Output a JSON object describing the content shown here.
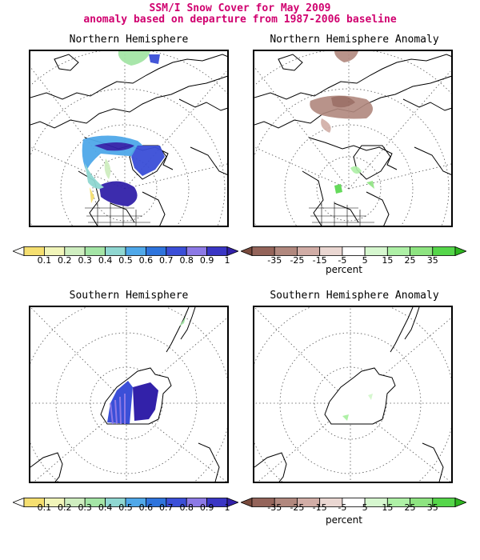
{
  "header": {
    "title_line1": "SSM/I Snow Cover for May 2009",
    "title_line2": "anomaly based on departure from 1987-2006 baseline"
  },
  "panels": {
    "nh": {
      "title": "Northern Hemisphere"
    },
    "nh_anom": {
      "title": "Northern Hemisphere Anomaly"
    },
    "sh": {
      "title": "Southern Hemisphere"
    },
    "sh_anom": {
      "title": "Southern Hemisphere Anomaly"
    }
  },
  "colorbars": {
    "cover": {
      "ticks": [
        "0.1",
        "0.2",
        "0.3",
        "0.4",
        "0.5",
        "0.6",
        "0.7",
        "0.8",
        "0.9",
        "1"
      ],
      "colors": [
        "#fbfbf9",
        "#f5df70",
        "#f1f5b9",
        "#cfeec0",
        "#a4e5a6",
        "#8fd7d1",
        "#4fa8e9",
        "#2e74dd",
        "#3b4fd8",
        "#8c79e6",
        "#3a36c5",
        "#3221a9"
      ]
    },
    "anomaly": {
      "ticks": [
        "-35",
        "-25",
        "-15",
        "-5",
        "5",
        "15",
        "25",
        "35"
      ],
      "unit": "percent",
      "colors": [
        "#7a4b3d",
        "#94645a",
        "#b1887e",
        "#d1ada6",
        "#ead7d2",
        "#ffffff",
        "#d6f7cf",
        "#aef0a6",
        "#8ee481",
        "#55d64a",
        "#2db61f"
      ]
    }
  }
}
